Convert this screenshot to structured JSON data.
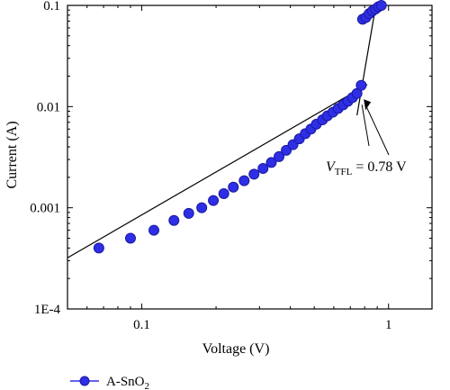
{
  "chart_data": {
    "type": "scatter",
    "xlabel": "Voltage (V)",
    "ylabel": "Current (A)",
    "x_scale": "log",
    "y_scale": "log",
    "xlim": [
      0.05,
      1.5
    ],
    "ylim": [
      0.0001,
      0.1
    ],
    "x_ticks": [
      {
        "value": 0.1,
        "label": "0.1"
      },
      {
        "value": 1,
        "label": "1"
      }
    ],
    "y_ticks": [
      {
        "value": 0.0001,
        "label": "1E-4"
      },
      {
        "value": 0.001,
        "label": "0.001"
      },
      {
        "value": 0.01,
        "label": "0.01"
      },
      {
        "value": 0.1,
        "label": "0.1"
      }
    ],
    "grid": false,
    "legend_position": "bottom-left",
    "series": [
      {
        "name": "A-SnO2",
        "color": "#2e2ee6",
        "points": [
          [
            0.067,
            0.0004
          ],
          [
            0.09,
            0.0005
          ],
          [
            0.112,
            0.0006
          ],
          [
            0.135,
            0.00075
          ],
          [
            0.155,
            0.00088
          ],
          [
            0.175,
            0.001
          ],
          [
            0.195,
            0.00118
          ],
          [
            0.215,
            0.00138
          ],
          [
            0.235,
            0.0016
          ],
          [
            0.26,
            0.00185
          ],
          [
            0.285,
            0.00215
          ],
          [
            0.31,
            0.00245
          ],
          [
            0.335,
            0.0028
          ],
          [
            0.36,
            0.0032
          ],
          [
            0.385,
            0.0037
          ],
          [
            0.41,
            0.0042
          ],
          [
            0.435,
            0.0048
          ],
          [
            0.46,
            0.0054
          ],
          [
            0.485,
            0.006
          ],
          [
            0.51,
            0.0067
          ],
          [
            0.54,
            0.0074
          ],
          [
            0.565,
            0.0081
          ],
          [
            0.595,
            0.0088
          ],
          [
            0.625,
            0.0096
          ],
          [
            0.655,
            0.0104
          ],
          [
            0.685,
            0.0113
          ],
          [
            0.715,
            0.0123
          ],
          [
            0.745,
            0.0135
          ],
          [
            0.775,
            0.0162
          ],
          [
            0.785,
            0.073
          ],
          [
            0.81,
            0.076
          ],
          [
            0.835,
            0.083
          ],
          [
            0.86,
            0.088
          ],
          [
            0.885,
            0.092
          ],
          [
            0.91,
            0.097
          ],
          [
            0.935,
            0.1
          ]
        ]
      }
    ],
    "fit_lines": [
      {
        "name": "ohmic-fit",
        "x": [
          0.05,
          0.82
        ],
        "y": [
          0.00032,
          0.0165
        ]
      },
      {
        "name": "tfl-fit",
        "x": [
          0.745,
          0.885
        ],
        "y": [
          0.0082,
          0.095
        ]
      }
    ],
    "annotation": {
      "text_main": "V",
      "text_sub": "TFL",
      "text_rest": " = 0.78 V",
      "x_value": 0.78
    }
  },
  "legend": {
    "label_main": "A-SnO",
    "label_sub": "2"
  }
}
